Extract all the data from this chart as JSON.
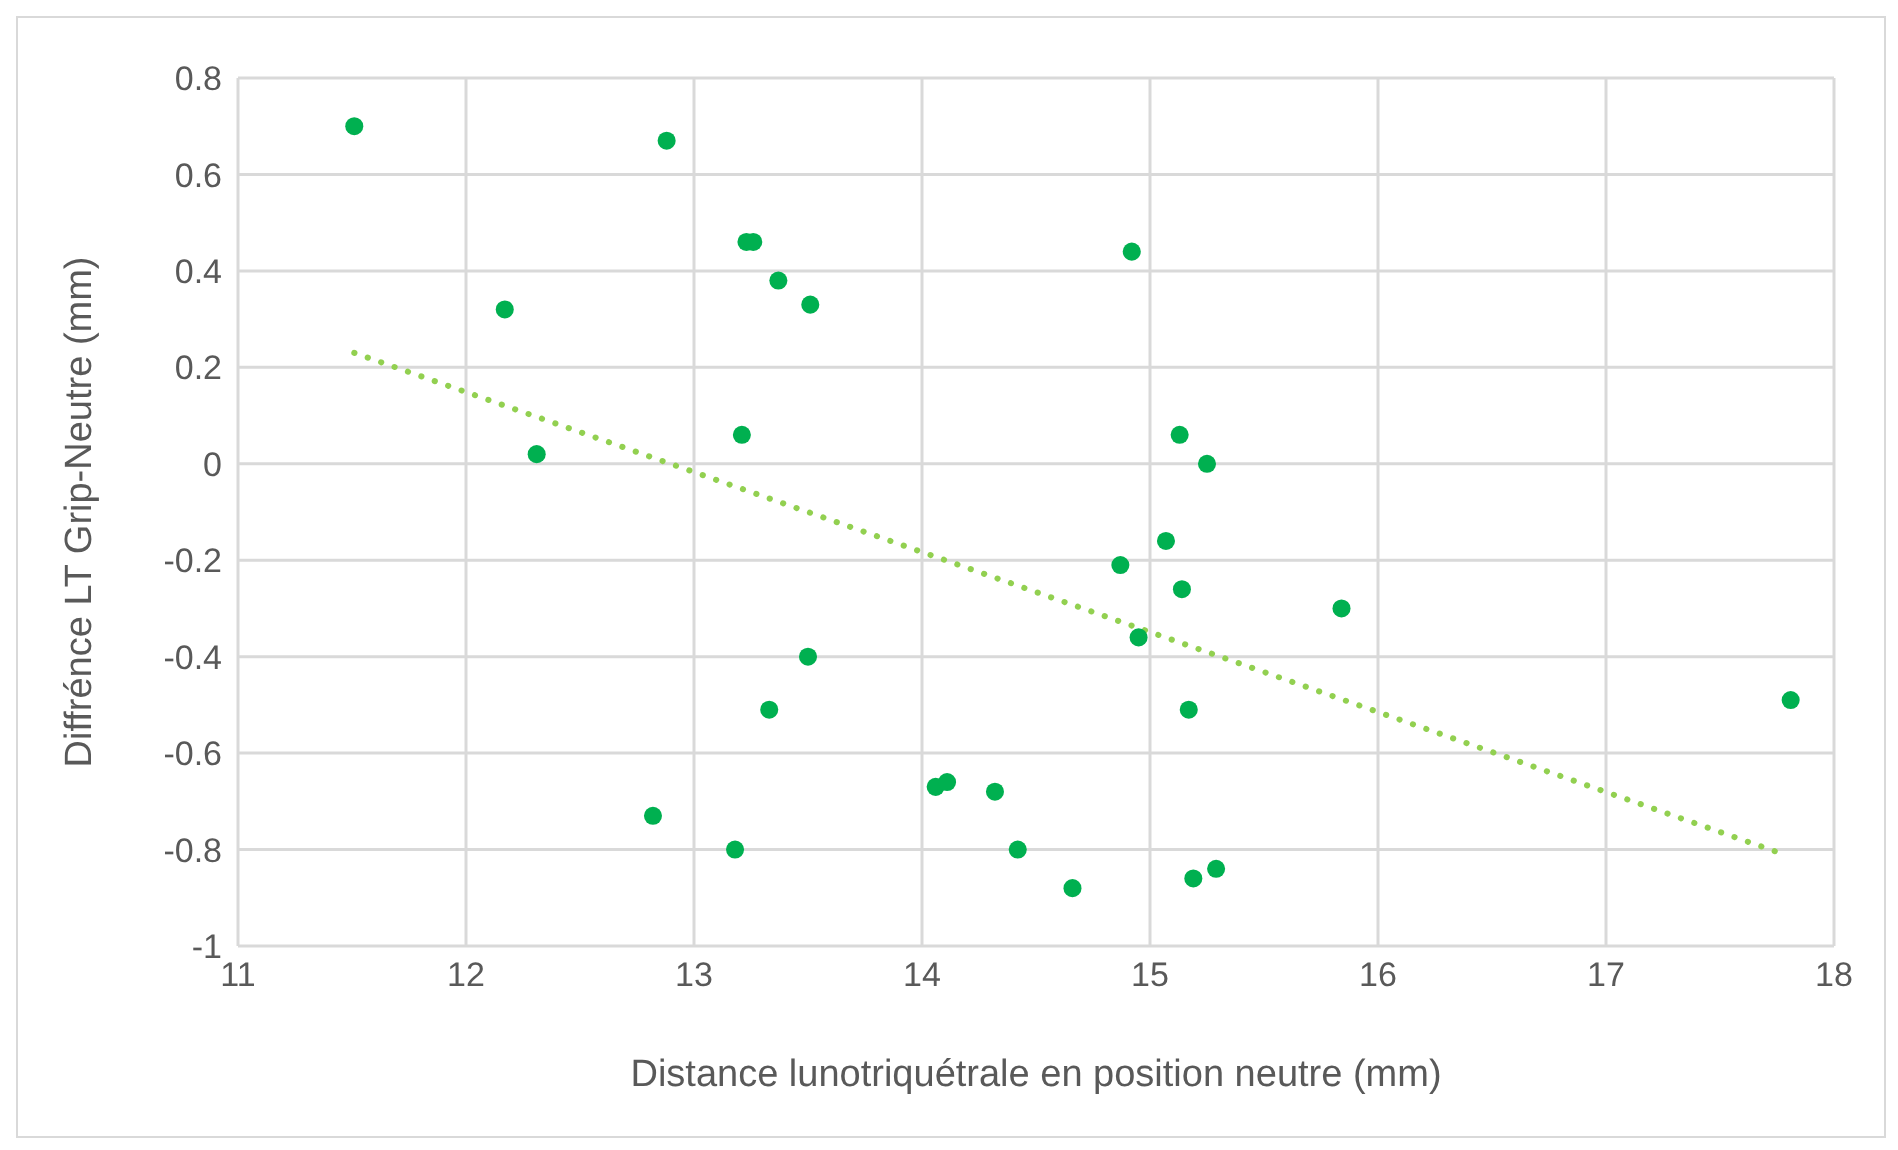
{
  "chart_data": {
    "type": "scatter",
    "xlabel": "Distance lunotriquétrale en position neutre (mm)",
    "ylabel": "Diffrénce LT Grip-Neutre (mm)",
    "xlim": [
      11,
      18
    ],
    "xticks": [
      11,
      12,
      13,
      14,
      15,
      16,
      17,
      18
    ],
    "ylim": [
      -1,
      0.8
    ],
    "yticks": [
      -1,
      -0.8,
      -0.6,
      -0.4,
      -0.2,
      0,
      0.2,
      0.4,
      0.6,
      0.8
    ],
    "grid": true,
    "legend": false,
    "marker": "circle",
    "series": [
      {
        "color": "#00b050",
        "x": [
          11.51,
          12.88,
          13.23,
          13.26,
          13.37,
          13.51,
          12.17,
          12.31,
          13.21,
          13.5,
          13.33,
          14.06,
          14.11,
          12.82,
          13.18,
          14.92,
          15.13,
          15.25,
          15.07,
          14.87,
          15.14,
          15.84,
          14.95,
          15.17,
          17.81,
          14.32,
          14.42,
          14.66,
          15.19,
          15.29
        ],
        "values": [
          0.7,
          0.67,
          0.46,
          0.46,
          0.38,
          0.33,
          0.32,
          0.02,
          0.06,
          -0.4,
          -0.51,
          -0.67,
          -0.66,
          -0.73,
          -0.8,
          0.44,
          0.06,
          0,
          -0.16,
          -0.21,
          -0.26,
          -0.3,
          -0.36,
          -0.51,
          -0.49,
          -0.68,
          -0.8,
          -0.88,
          -0.86,
          -0.84
        ]
      },
      {
        "type": "line",
        "color": "#92d050",
        "line_style": "dotted",
        "marker": "none",
        "x": [
          11.51,
          17.78
        ],
        "values": [
          0.23,
          -0.81
        ]
      }
    ]
  }
}
